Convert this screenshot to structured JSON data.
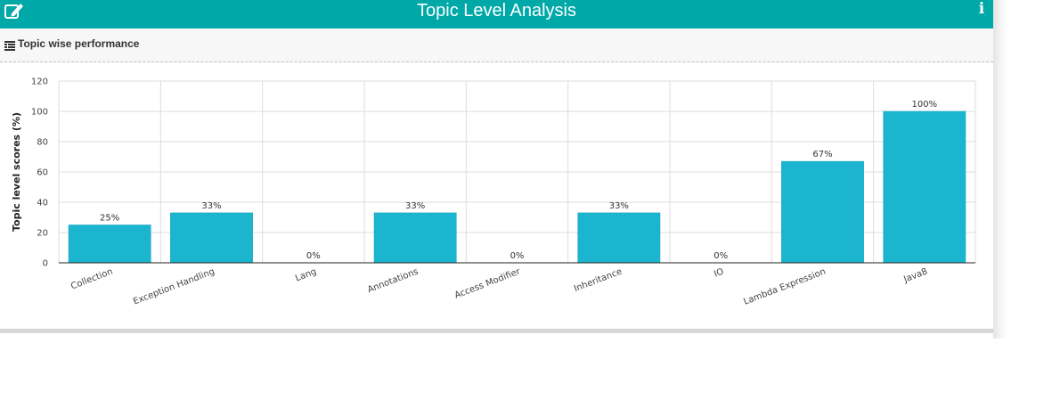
{
  "header": {
    "title": "Topic Level Analysis",
    "edit_icon": "edit-icon",
    "info_icon": "info-icon",
    "info_glyph": "i",
    "color": "#00a8a8"
  },
  "section": {
    "title": "Topic wise performance",
    "icon": "list-icon"
  },
  "chart_data": {
    "type": "bar",
    "ylabel": "Topic level scores (%)",
    "xlabel": "",
    "ylim": [
      0,
      120
    ],
    "yticks": [
      0,
      20,
      40,
      60,
      80,
      100,
      120
    ],
    "categories": [
      "Collection",
      "Exception Handling",
      "Lang",
      "Annotations",
      "Access Modifier",
      "Inheritance",
      "IO",
      "Lambda Expression",
      "Java8"
    ],
    "values": [
      25,
      33,
      0,
      33,
      0,
      33,
      0,
      67,
      100
    ],
    "data_labels": [
      "25%",
      "33%",
      "0%",
      "33%",
      "0%",
      "33%",
      "0%",
      "67%",
      "100%"
    ],
    "bar_color": "#1cb5d0",
    "grid": true,
    "legend": "none"
  }
}
